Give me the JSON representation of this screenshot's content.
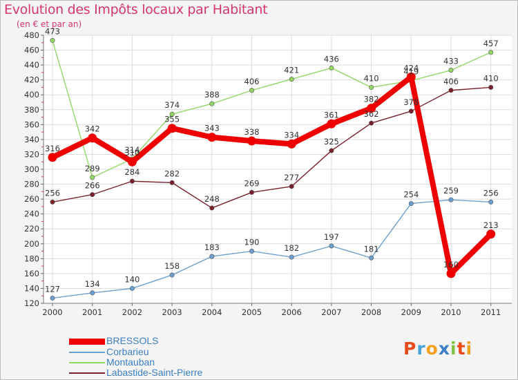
{
  "header": {
    "title": "Evolution des Impôts locaux par Habitant",
    "subtitle": "(en € et par an)"
  },
  "logo": {
    "text": "Proxiti",
    "letters": [
      {
        "ch": "P",
        "color": "#e84a1b"
      },
      {
        "ch": "r",
        "color": "#4aa3d8"
      },
      {
        "ch": "o",
        "color": "#f2a11f"
      },
      {
        "ch": "x",
        "color": "#3b7fc4"
      },
      {
        "ch": "i",
        "color": "#7fc241"
      },
      {
        "ch": "t",
        "color": "#e84a1b"
      },
      {
        "ch": "i",
        "color": "#f2a11f"
      }
    ]
  },
  "chart_data": {
    "type": "line",
    "title": "Evolution des Impôts locaux par Habitant",
    "subtitle": "(en € et par an)",
    "xlabel": "",
    "ylabel": "",
    "categories": [
      "2000",
      "2001",
      "2002",
      "2003",
      "2004",
      "2005",
      "2006",
      "2007",
      "2008",
      "2009",
      "2010",
      "2011"
    ],
    "ylim": [
      120,
      480
    ],
    "yticks": [
      120,
      140,
      160,
      180,
      200,
      220,
      240,
      260,
      280,
      300,
      320,
      340,
      360,
      380,
      400,
      420,
      440,
      460,
      480
    ],
    "grid": true,
    "legend_position": "bottom-left",
    "series": [
      {
        "name": "BRESSOLS",
        "color": "#ee0000",
        "highlight": true,
        "values": [
          316,
          342,
          310,
          355,
          343,
          338,
          334,
          361,
          382,
          424,
          160,
          213
        ],
        "labels": [
          "316",
          "342",
          "310",
          "355",
          "343",
          "338",
          "334",
          "361",
          "382",
          "424",
          "160",
          "213"
        ]
      },
      {
        "name": "Corbarieu",
        "color": "#6a9fd0",
        "highlight": false,
        "values": [
          127,
          134,
          140,
          158,
          183,
          190,
          182,
          197,
          181,
          254,
          259,
          256
        ],
        "labels": [
          "127",
          "134",
          "140",
          "158",
          "183",
          "190",
          "182",
          "197",
          "181",
          "254",
          "259",
          "256"
        ]
      },
      {
        "name": "Montauban",
        "color": "#92d764",
        "highlight": false,
        "values": [
          473,
          289,
          314,
          374,
          388,
          406,
          421,
          436,
          410,
          419,
          433,
          457
        ],
        "labels": [
          "473",
          "289",
          "314",
          "374",
          "388",
          "406",
          "421",
          "436",
          "410",
          "419",
          "433",
          "457"
        ]
      },
      {
        "name": "Labastide-Saint-Pierre",
        "color": "#7a1f2b",
        "highlight": false,
        "values": [
          256,
          266,
          284,
          282,
          248,
          269,
          277,
          325,
          362,
          378,
          406,
          410
        ],
        "labels": [
          "256",
          "266",
          "284",
          "282",
          "248",
          "269",
          "277",
          "325",
          "362",
          "378",
          "406",
          "410"
        ]
      }
    ]
  }
}
